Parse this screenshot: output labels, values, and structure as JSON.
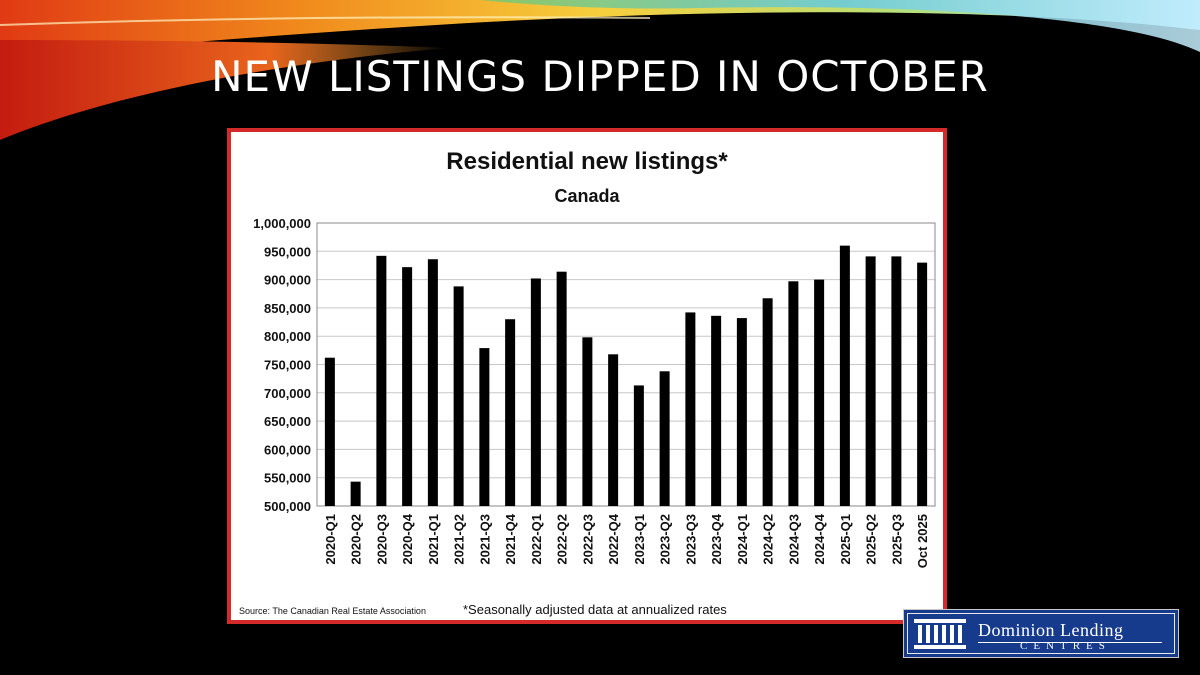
{
  "slide": {
    "title": "NEW LISTINGS DIPPED IN OCTOBER"
  },
  "chart_data": {
    "type": "bar",
    "title": "Residential new listings*",
    "subtitle": "Canada",
    "xlabel": "",
    "ylabel": "",
    "ylim": [
      500000,
      1000000
    ],
    "y_ticks": [
      "1,000,000",
      "950,000",
      "900,000",
      "850,000",
      "800,000",
      "750,000",
      "700,000",
      "650,000",
      "600,000",
      "550,000",
      "500,000"
    ],
    "grid": true,
    "categories": [
      "2020-Q1",
      "2020-Q2",
      "2020-Q3",
      "2020-Q4",
      "2021-Q1",
      "2021-Q2",
      "2021-Q3",
      "2021-Q4",
      "2022-Q1",
      "2022-Q2",
      "2022-Q3",
      "2022-Q4",
      "2023-Q1",
      "2023-Q2",
      "2023-Q3",
      "2023-Q4",
      "2024-Q1",
      "2024-Q2",
      "2024-Q3",
      "2024-Q4",
      "2025-Q1",
      "2025-Q2",
      "2025-Q3",
      "Oct 2025"
    ],
    "values": [
      762000,
      543000,
      942000,
      922000,
      936000,
      888000,
      779000,
      830000,
      902000,
      914000,
      798000,
      768000,
      713000,
      738000,
      842000,
      836000,
      832000,
      867000,
      897000,
      900000,
      960000,
      941000,
      941000,
      930000
    ],
    "bar_color": "#000000",
    "source": "Source: The Canadian Real Estate Association",
    "footnote": "*Seasonally adjusted data at annualized rates"
  },
  "logo": {
    "line1": "Dominion Lending",
    "line2": "CENTRES",
    "colors": {
      "background": "#163a8c",
      "text": "#ffffff"
    }
  }
}
